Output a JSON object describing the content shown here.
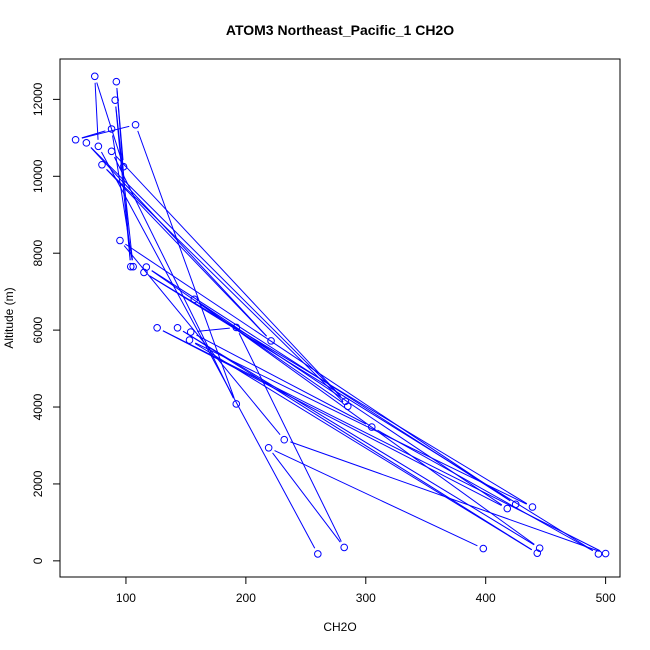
{
  "chart_data": {
    "type": "line",
    "title": "ATOM3 Northeast_Pacific_1 CH2O",
    "xlabel": "CH2O",
    "ylabel": "Altitude (m)",
    "xlim": [
      45,
      512
    ],
    "ylim": [
      -420,
      13050
    ],
    "x_ticks": [
      100,
      200,
      300,
      400,
      500
    ],
    "y_ticks": [
      0,
      2000,
      4000,
      6000,
      8000,
      10000,
      12000
    ],
    "grid": false,
    "legend": "none",
    "series_color": "#0000ff",
    "points": [
      {
        "x": 260,
        "y": 180
      },
      {
        "x": 77,
        "y": 10780
      },
      {
        "x": 74,
        "y": 12600
      },
      {
        "x": 98,
        "y": 10250
      },
      {
        "x": 92,
        "y": 12460
      },
      {
        "x": 104,
        "y": 7650
      },
      {
        "x": 91,
        "y": 11980
      },
      {
        "x": 106,
        "y": 7650
      },
      {
        "x": 88,
        "y": 11230
      },
      {
        "x": 58,
        "y": 10950
      },
      {
        "x": 108,
        "y": 11340
      },
      {
        "x": 192,
        "y": 4080
      },
      {
        "x": 88,
        "y": 10650
      },
      {
        "x": 283,
        "y": 4150
      },
      {
        "x": 67,
        "y": 10870
      },
      {
        "x": 221,
        "y": 5720
      },
      {
        "x": 80,
        "y": 10300
      },
      {
        "x": 285,
        "y": 4020
      },
      {
        "x": 117,
        "y": 7640
      },
      {
        "x": 425,
        "y": 1470
      },
      {
        "x": 95,
        "y": 8330
      },
      {
        "x": 232,
        "y": 3150
      },
      {
        "x": 500,
        "y": 190
      },
      {
        "x": 126,
        "y": 6060
      },
      {
        "x": 418,
        "y": 1360
      },
      {
        "x": 157,
        "y": 6800
      },
      {
        "x": 445,
        "y": 330
      },
      {
        "x": 143,
        "y": 6060
      },
      {
        "x": 443,
        "y": 200
      },
      {
        "x": 153,
        "y": 5740
      },
      {
        "x": 439,
        "y": 1400
      },
      {
        "x": 115,
        "y": 7500
      },
      {
        "x": 494,
        "y": 180
      },
      {
        "x": 305,
        "y": 3480
      },
      {
        "x": 154,
        "y": 5950
      },
      {
        "x": 192,
        "y": 6070
      },
      {
        "x": 282,
        "y": 350
      },
      {
        "x": 219,
        "y": 2940
      },
      {
        "x": 398,
        "y": 320
      }
    ]
  }
}
